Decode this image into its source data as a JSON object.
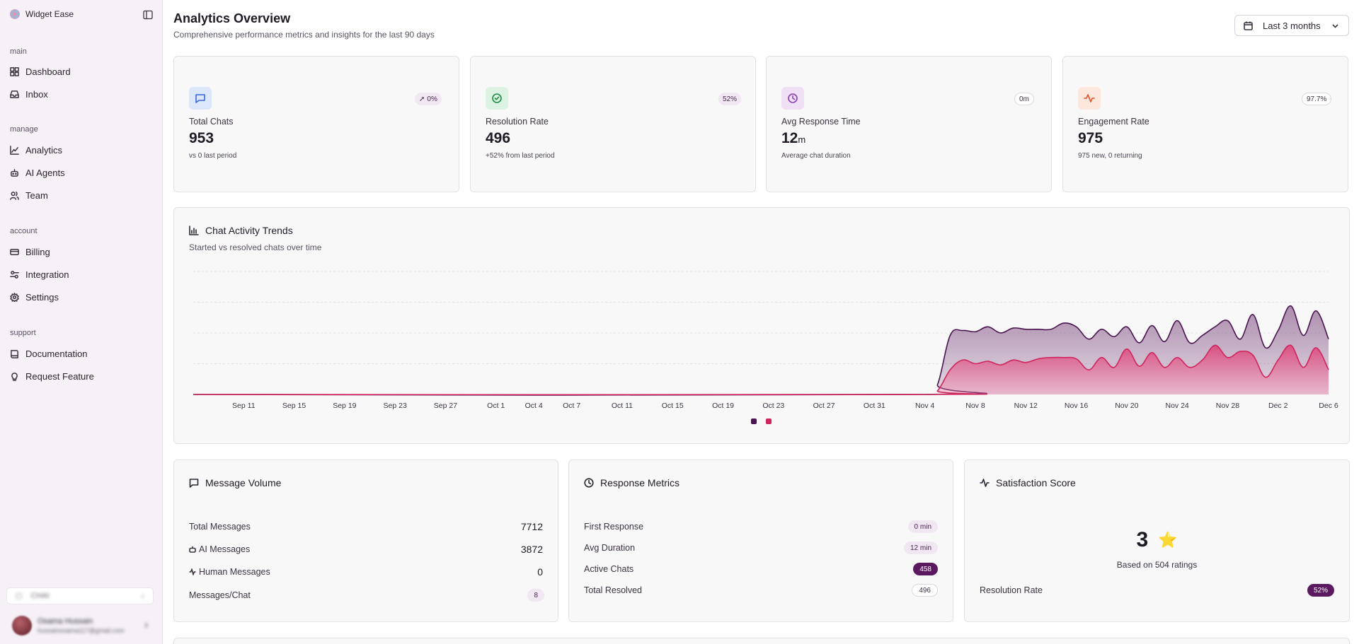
{
  "app": {
    "name": "Widget Ease"
  },
  "sidebar": {
    "sections": [
      {
        "label": "main",
        "items": [
          {
            "label": "Dashboard",
            "icon": "grid-icon"
          },
          {
            "label": "Inbox",
            "icon": "inbox-icon"
          }
        ]
      },
      {
        "label": "manage",
        "items": [
          {
            "label": "Analytics",
            "icon": "chart-line-icon"
          },
          {
            "label": "AI Agents",
            "icon": "bot-icon"
          },
          {
            "label": "Team",
            "icon": "users-icon"
          }
        ]
      },
      {
        "label": "account",
        "items": [
          {
            "label": "Billing",
            "icon": "credit-card-icon"
          },
          {
            "label": "Integration",
            "icon": "sliders-icon"
          },
          {
            "label": "Settings",
            "icon": "gear-icon"
          }
        ]
      },
      {
        "label": "support",
        "items": [
          {
            "label": "Documentation",
            "icon": "book-icon"
          },
          {
            "label": "Request Feature",
            "icon": "lightbulb-icon"
          }
        ]
      }
    ],
    "org_name": "CHAI",
    "user": {
      "name": "Osama Hussain",
      "email": "hussainosama117@gmail.com"
    }
  },
  "header": {
    "title": "Analytics Overview",
    "subtitle": "Comprehensive performance metrics and insights for the last 90 days",
    "range_label": "Last 3 months"
  },
  "stats": [
    {
      "label": "Total Chats",
      "value": "953",
      "unit": "",
      "badge": "0%",
      "note": "vs 0 last period",
      "icon": "message-square-icon",
      "icon_bg": "#dde7fb",
      "icon_color": "#3866d6"
    },
    {
      "label": "Resolution Rate",
      "value": "496",
      "unit": "",
      "badge": "52%",
      "note": "+52% from last period",
      "icon": "check-circle-icon",
      "icon_bg": "#dcf2e2",
      "icon_color": "#1f8a46"
    },
    {
      "label": "Avg Response Time",
      "value": "12",
      "unit": "m",
      "badge": "0m",
      "note": "Average chat duration",
      "icon": "clock-icon",
      "icon_bg": "#efe0f6",
      "icon_color": "#8a3bb3"
    },
    {
      "label": "Engagement Rate",
      "value": "975",
      "unit": "",
      "badge": "97.7%",
      "note": "975 new, 0 returning",
      "icon": "activity-icon",
      "icon_bg": "#fde7dc",
      "icon_color": "#e0502a"
    }
  ],
  "trend": {
    "title": "Chat Activity Trends",
    "subtitle": "Started vs resolved chats over time"
  },
  "chart_data": {
    "type": "area",
    "x_tick_labels": [
      "Sep 11",
      "Sep 15",
      "Sep 19",
      "Sep 23",
      "Sep 27",
      "Oct 1",
      "Oct 4",
      "Oct 7",
      "Oct 11",
      "Oct 15",
      "Oct 19",
      "Oct 23",
      "Oct 27",
      "Oct 31",
      "Nov 4",
      "Nov 8",
      "Nov 12",
      "Nov 16",
      "Nov 20",
      "Nov 24",
      "Nov 28",
      "Dec 2",
      "Dec 6"
    ],
    "x_range": [
      "Sep 7",
      "Dec 6"
    ],
    "ylim": [
      0,
      100
    ],
    "grid": true,
    "legend": "bottom-center",
    "series": [
      {
        "color": "#4a1450",
        "fill": "#7a3e7e",
        "points": [
          [
            "Sep 7",
            0
          ],
          [
            "Nov 4",
            0
          ],
          [
            "Nov 5",
            8
          ],
          [
            "Nov 6",
            48
          ],
          [
            "Nov 7",
            52
          ],
          [
            "Nov 8",
            51
          ],
          [
            "Nov 9",
            55
          ],
          [
            "Nov 10",
            50
          ],
          [
            "Nov 11",
            54
          ],
          [
            "Nov 12",
            53
          ],
          [
            "Nov 13",
            53
          ],
          [
            "Nov 14",
            53
          ],
          [
            "Nov 15",
            58
          ],
          [
            "Nov 16",
            55
          ],
          [
            "Nov 17",
            45
          ],
          [
            "Nov 18",
            53
          ],
          [
            "Nov 19",
            47
          ],
          [
            "Nov 20",
            55
          ],
          [
            "Nov 21",
            42
          ],
          [
            "Nov 22",
            56
          ],
          [
            "Nov 23",
            43
          ],
          [
            "Nov 24",
            60
          ],
          [
            "Nov 25",
            42
          ],
          [
            "Nov 26",
            48
          ],
          [
            "Nov 27",
            55
          ],
          [
            "Nov 28",
            60
          ],
          [
            "Nov 29",
            45
          ],
          [
            "Nov 30",
            65
          ],
          [
            "Dec 1",
            38
          ],
          [
            "Dec 2",
            52
          ],
          [
            "Dec 3",
            72
          ],
          [
            "Dec 4",
            48
          ],
          [
            "Dec 5",
            68
          ],
          [
            "Dec 6",
            45
          ]
        ]
      },
      {
        "color": "#d0245c",
        "fill": "#e8709a",
        "points": [
          [
            "Sep 7",
            0
          ],
          [
            "Nov 4",
            0
          ],
          [
            "Nov 5",
            3
          ],
          [
            "Nov 6",
            20
          ],
          [
            "Nov 7",
            28
          ],
          [
            "Nov 8",
            25
          ],
          [
            "Nov 9",
            27
          ],
          [
            "Nov 10",
            24
          ],
          [
            "Nov 11",
            28
          ],
          [
            "Nov 12",
            26
          ],
          [
            "Nov 13",
            29
          ],
          [
            "Nov 14",
            30
          ],
          [
            "Nov 15",
            30
          ],
          [
            "Nov 16",
            29
          ],
          [
            "Nov 17",
            20
          ],
          [
            "Nov 18",
            30
          ],
          [
            "Nov 19",
            22
          ],
          [
            "Nov 20",
            37
          ],
          [
            "Nov 21",
            23
          ],
          [
            "Nov 22",
            34
          ],
          [
            "Nov 23",
            22
          ],
          [
            "Nov 24",
            30
          ],
          [
            "Nov 25",
            22
          ],
          [
            "Nov 26",
            28
          ],
          [
            "Nov 27",
            40
          ],
          [
            "Nov 28",
            30
          ],
          [
            "Nov 29",
            35
          ],
          [
            "Nov 30",
            32
          ],
          [
            "Dec 1",
            14
          ],
          [
            "Dec 2",
            28
          ],
          [
            "Dec 3",
            40
          ],
          [
            "Dec 4",
            22
          ],
          [
            "Dec 5",
            38
          ],
          [
            "Dec 6",
            20
          ]
        ]
      }
    ]
  },
  "message_volume": {
    "title": "Message Volume",
    "rows": [
      {
        "label": "Total Messages",
        "value": "7712",
        "icon": ""
      },
      {
        "label": "AI Messages",
        "value": "3872",
        "icon": "bot-icon"
      },
      {
        "label": "Human Messages",
        "value": "0",
        "icon": "activity-icon"
      },
      {
        "label": "Messages/Chat",
        "value": "8",
        "icon": "",
        "pill": "soft"
      }
    ]
  },
  "response_metrics": {
    "title": "Response Metrics",
    "rows": [
      {
        "label": "First Response",
        "value": "0 min",
        "pill": "soft"
      },
      {
        "label": "Avg Duration",
        "value": "12 min",
        "pill": "soft"
      },
      {
        "label": "Active Chats",
        "value": "458",
        "pill": "dark"
      },
      {
        "label": "Total Resolved",
        "value": "496",
        "pill": "outline"
      }
    ]
  },
  "satisfaction": {
    "title": "Satisfaction Score",
    "score": "3",
    "ratings_text": "Based on 504 ratings",
    "resolution_label": "Resolution Rate",
    "resolution_value": "52%"
  }
}
